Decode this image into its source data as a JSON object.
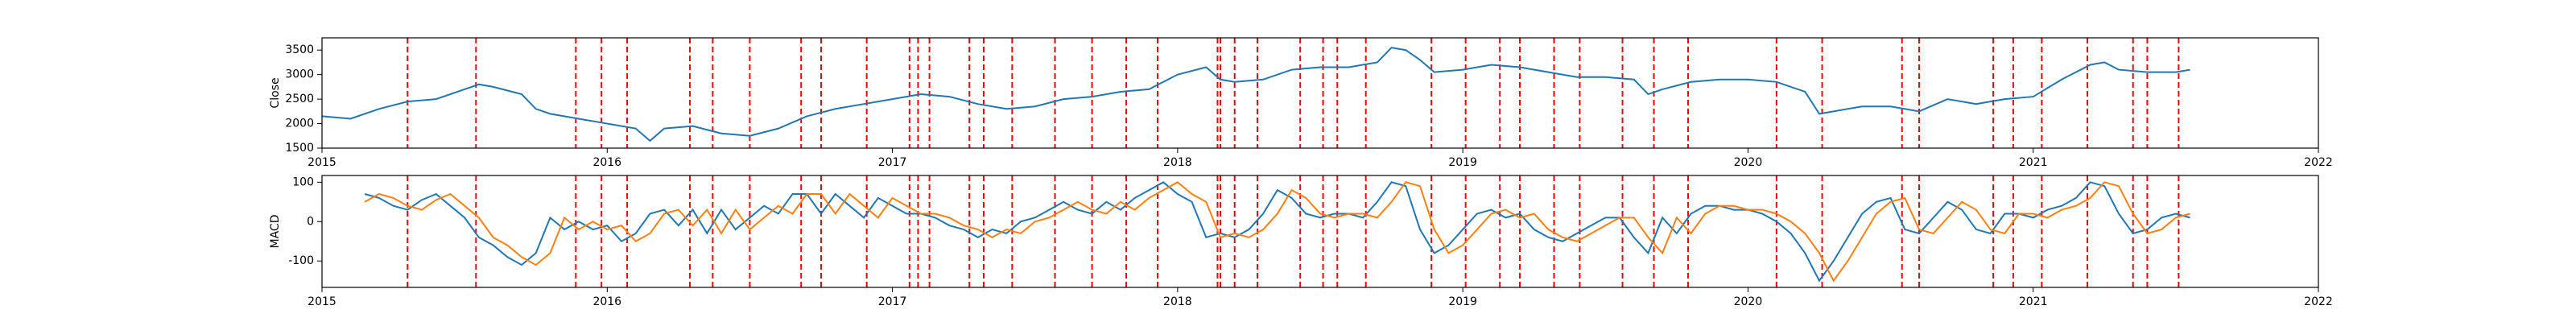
{
  "chart_data": [
    {
      "type": "line",
      "ylabel": "Close",
      "x": [
        2015.0,
        2015.1,
        2015.2,
        2015.3,
        2015.4,
        2015.5,
        2015.55,
        2015.6,
        2015.7,
        2015.75,
        2015.8,
        2015.9,
        2016.0,
        2016.1,
        2016.15,
        2016.2,
        2016.3,
        2016.4,
        2016.5,
        2016.6,
        2016.7,
        2016.8,
        2016.9,
        2017.0,
        2017.1,
        2017.2,
        2017.3,
        2017.4,
        2017.5,
        2017.6,
        2017.7,
        2017.8,
        2017.9,
        2018.0,
        2018.1,
        2018.15,
        2018.2,
        2018.3,
        2018.4,
        2018.5,
        2018.6,
        2018.7,
        2018.75,
        2018.8,
        2018.85,
        2018.9,
        2019.0,
        2019.1,
        2019.2,
        2019.3,
        2019.4,
        2019.5,
        2019.6,
        2019.65,
        2019.7,
        2019.8,
        2019.9,
        2020.0,
        2020.1,
        2020.2,
        2020.25,
        2020.3,
        2020.4,
        2020.5,
        2020.6,
        2020.7,
        2020.8,
        2020.9,
        2021.0,
        2021.1,
        2021.2,
        2021.25,
        2021.3,
        2021.4,
        2021.5,
        2021.55
      ],
      "series": [
        {
          "color": "#1f77b4",
          "values": [
            2150,
            2100,
            2300,
            2450,
            2500,
            2700,
            2800,
            2750,
            2600,
            2300,
            2200,
            2100,
            2000,
            1900,
            1650,
            1900,
            1950,
            1800,
            1750,
            1900,
            2150,
            2300,
            2400,
            2500,
            2600,
            2550,
            2400,
            2300,
            2350,
            2500,
            2550,
            2650,
            2700,
            3000,
            3150,
            2900,
            2850,
            2900,
            3100,
            3150,
            3150,
            3250,
            3550,
            3500,
            3300,
            3050,
            3100,
            3200,
            3150,
            3050,
            2950,
            2950,
            2900,
            2600,
            2700,
            2850,
            2900,
            2900,
            2850,
            2650,
            2200,
            2250,
            2350,
            2350,
            2250,
            2500,
            2400,
            2500,
            2550,
            2900,
            3200,
            3250,
            3100,
            3050,
            3050,
            3100
          ]
        }
      ],
      "xlim": [
        2015,
        2022
      ],
      "xticks": [
        2015,
        2016,
        2017,
        2018,
        2019,
        2020,
        2021,
        2022
      ],
      "ylim": [
        1500,
        3750
      ],
      "yticks": [
        1500,
        2000,
        2500,
        3000,
        3500
      ],
      "vlines": {
        "color": "red",
        "values": [
          2015.3,
          2015.54,
          2015.89,
          2015.98,
          2016.07,
          2016.29,
          2016.37,
          2016.5,
          2016.68,
          2016.75,
          2016.91,
          2017.06,
          2017.09,
          2017.13,
          2017.27,
          2017.32,
          2017.42,
          2017.57,
          2017.7,
          2017.82,
          2017.93,
          2018.14,
          2018.15,
          2018.2,
          2018.28,
          2018.43,
          2018.51,
          2018.56,
          2018.66,
          2018.89,
          2019.01,
          2019.13,
          2019.2,
          2019.32,
          2019.41,
          2019.56,
          2019.67,
          2019.79,
          2020.1,
          2020.26,
          2020.54,
          2020.6,
          2020.86,
          2020.93,
          2021.03,
          2021.19,
          2021.35,
          2021.4,
          2021.51
        ]
      }
    },
    {
      "type": "line",
      "ylabel": "MACD",
      "x": [
        2015.15,
        2015.2,
        2015.25,
        2015.3,
        2015.35,
        2015.4,
        2015.45,
        2015.5,
        2015.55,
        2015.6,
        2015.65,
        2015.7,
        2015.75,
        2015.8,
        2015.85,
        2015.9,
        2015.95,
        2016.0,
        2016.05,
        2016.1,
        2016.15,
        2016.2,
        2016.25,
        2016.3,
        2016.35,
        2016.4,
        2016.45,
        2016.5,
        2016.55,
        2016.6,
        2016.65,
        2016.7,
        2016.75,
        2016.8,
        2016.85,
        2016.9,
        2016.95,
        2017.0,
        2017.05,
        2017.1,
        2017.15,
        2017.2,
        2017.25,
        2017.3,
        2017.35,
        2017.4,
        2017.45,
        2017.5,
        2017.55,
        2017.6,
        2017.65,
        2017.7,
        2017.75,
        2017.8,
        2017.85,
        2017.9,
        2017.95,
        2018.0,
        2018.05,
        2018.1,
        2018.15,
        2018.2,
        2018.25,
        2018.3,
        2018.35,
        2018.4,
        2018.45,
        2018.5,
        2018.55,
        2018.6,
        2018.65,
        2018.7,
        2018.75,
        2018.8,
        2018.85,
        2018.9,
        2018.95,
        2019.0,
        2019.05,
        2019.1,
        2019.15,
        2019.2,
        2019.25,
        2019.3,
        2019.35,
        2019.4,
        2019.45,
        2019.5,
        2019.55,
        2019.6,
        2019.65,
        2019.7,
        2019.75,
        2019.8,
        2019.85,
        2019.9,
        2019.95,
        2020.0,
        2020.05,
        2020.1,
        2020.15,
        2020.2,
        2020.25,
        2020.3,
        2020.35,
        2020.4,
        2020.45,
        2020.5,
        2020.55,
        2020.6,
        2020.65,
        2020.7,
        2020.75,
        2020.8,
        2020.85,
        2020.9,
        2020.95,
        2021.0,
        2021.05,
        2021.1,
        2021.15,
        2021.2,
        2021.25,
        2021.3,
        2021.35,
        2021.4,
        2021.45,
        2021.5,
        2021.55
      ],
      "series": [
        {
          "color": "#1f77b4",
          "values": [
            70,
            60,
            40,
            30,
            55,
            70,
            40,
            10,
            -40,
            -60,
            -90,
            -110,
            -80,
            10,
            -20,
            0,
            -20,
            -10,
            -50,
            -30,
            20,
            30,
            -10,
            30,
            -30,
            30,
            -20,
            10,
            40,
            20,
            70,
            70,
            20,
            70,
            40,
            10,
            60,
            40,
            20,
            20,
            10,
            -10,
            -20,
            -40,
            -20,
            -30,
            0,
            10,
            30,
            50,
            30,
            20,
            50,
            30,
            60,
            80,
            100,
            70,
            50,
            -40,
            -30,
            -40,
            -20,
            20,
            80,
            60,
            20,
            10,
            20,
            20,
            10,
            50,
            100,
            90,
            -20,
            -80,
            -60,
            -20,
            20,
            30,
            10,
            20,
            -20,
            -40,
            -50,
            -30,
            -10,
            10,
            10,
            -40,
            -80,
            10,
            -30,
            20,
            40,
            40,
            30,
            30,
            20,
            0,
            -30,
            -80,
            -150,
            -100,
            -40,
            20,
            50,
            60,
            -20,
            -30,
            10,
            50,
            30,
            -20,
            -30,
            20,
            20,
            10,
            30,
            40,
            60,
            100,
            90,
            20,
            -30,
            -20,
            10,
            20,
            10
          ]
        },
        {
          "color": "#ff7f0e",
          "values": [
            50,
            70,
            60,
            40,
            30,
            55,
            70,
            40,
            10,
            -40,
            -60,
            -90,
            -110,
            -80,
            10,
            -20,
            0,
            -20,
            -10,
            -50,
            -30,
            20,
            30,
            -10,
            30,
            -30,
            30,
            -20,
            10,
            40,
            20,
            70,
            70,
            20,
            70,
            40,
            10,
            60,
            40,
            20,
            20,
            10,
            -10,
            -20,
            -40,
            -20,
            -30,
            0,
            10,
            30,
            50,
            30,
            20,
            50,
            30,
            60,
            80,
            100,
            70,
            50,
            -40,
            -30,
            -40,
            -20,
            20,
            80,
            60,
            20,
            10,
            20,
            20,
            10,
            50,
            100,
            90,
            -20,
            -80,
            -60,
            -20,
            20,
            30,
            10,
            20,
            -20,
            -40,
            -50,
            -30,
            -10,
            10,
            10,
            -40,
            -80,
            10,
            -30,
            20,
            40,
            40,
            30,
            30,
            20,
            0,
            -30,
            -80,
            -150,
            -100,
            -40,
            20,
            50,
            60,
            -20,
            -30,
            10,
            50,
            30,
            -20,
            -30,
            20,
            20,
            10,
            30,
            40,
            60,
            100,
            90,
            20,
            -30,
            -20,
            10,
            20
          ]
        }
      ],
      "xlim": [
        2015,
        2022
      ],
      "xticks": [
        2015,
        2016,
        2017,
        2018,
        2019,
        2020,
        2021,
        2022
      ],
      "ylim": [
        -167,
        117
      ],
      "yticks": [
        -100,
        0,
        100
      ],
      "vlines": {
        "color": "red",
        "values": [
          2015.3,
          2015.54,
          2015.89,
          2015.98,
          2016.07,
          2016.29,
          2016.37,
          2016.5,
          2016.68,
          2016.75,
          2016.91,
          2017.06,
          2017.09,
          2017.13,
          2017.27,
          2017.32,
          2017.42,
          2017.57,
          2017.7,
          2017.82,
          2017.93,
          2018.14,
          2018.15,
          2018.2,
          2018.28,
          2018.43,
          2018.51,
          2018.56,
          2018.66,
          2018.89,
          2019.01,
          2019.13,
          2019.2,
          2019.32,
          2019.41,
          2019.56,
          2019.67,
          2019.79,
          2020.1,
          2020.26,
          2020.54,
          2020.6,
          2020.86,
          2020.93,
          2021.03,
          2021.19,
          2021.35,
          2021.4,
          2021.51
        ]
      }
    }
  ]
}
